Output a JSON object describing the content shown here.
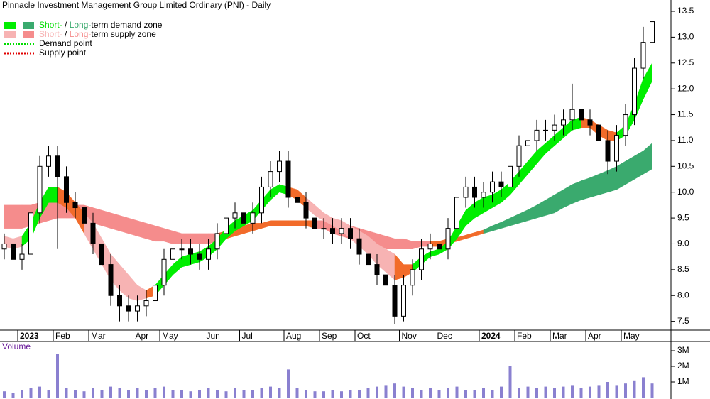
{
  "chart_data": {
    "type": "candlestick",
    "title": "Pinnacle Investment Management Group Limited Ordinary (PNI) - Daily",
    "categories": [
      null,
      null,
      "2023",
      null,
      null,
      null,
      "Feb",
      null,
      null,
      null,
      "Mar",
      null,
      null,
      null,
      null,
      "Apr",
      null,
      null,
      "May",
      null,
      null,
      null,
      null,
      "Jun",
      null,
      null,
      null,
      "Jul",
      null,
      null,
      null,
      null,
      "Aug",
      null,
      null,
      null,
      "Sep",
      null,
      null,
      null,
      "Oct",
      null,
      null,
      null,
      null,
      "Nov",
      null,
      null,
      null,
      "Dec",
      null,
      null,
      null,
      null,
      "2024",
      null,
      null,
      null,
      "Feb",
      null,
      null,
      null,
      "Mar",
      null,
      null,
      null,
      "Apr",
      null,
      null,
      null,
      "May",
      null,
      null,
      null
    ],
    "open": [
      8.9,
      9.0,
      8.7,
      8.8,
      9.6,
      10.5,
      10.7,
      10.3,
      9.8,
      9.7,
      9.4,
      9.0,
      8.6,
      8.0,
      7.8,
      7.7,
      7.8,
      7.9,
      8.2,
      8.7,
      8.9,
      8.9,
      8.8,
      8.7,
      8.9,
      9.2,
      9.5,
      9.6,
      9.4,
      9.6,
      10.1,
      10.4,
      10.6,
      9.9,
      9.8,
      9.5,
      9.3,
      9.3,
      9.2,
      9.3,
      9.1,
      8.8,
      8.6,
      8.4,
      8.2,
      7.6,
      8.2,
      8.5,
      8.9,
      9.0,
      8.9,
      9.3,
      9.9,
      10.1,
      9.9,
      10.0,
      10.2,
      10.1,
      10.5,
      10.9,
      11.0,
      11.2,
      11.2,
      11.3,
      11.4,
      11.6,
      11.4,
      11.3,
      11.0,
      10.6,
      11.1,
      11.5,
      12.4,
      12.9
    ],
    "high": [
      9.2,
      9.2,
      9.0,
      9.8,
      10.7,
      10.9,
      10.9,
      10.5,
      10.0,
      9.9,
      9.6,
      9.2,
      8.8,
      8.2,
      8.0,
      8.0,
      8.1,
      8.4,
      8.9,
      9.1,
      9.1,
      9.1,
      9.0,
      9.1,
      9.4,
      9.7,
      9.8,
      9.8,
      9.8,
      10.3,
      10.6,
      10.8,
      10.8,
      10.1,
      10.0,
      9.7,
      9.5,
      9.5,
      9.5,
      9.5,
      9.3,
      9.0,
      8.8,
      8.6,
      8.4,
      8.4,
      8.7,
      9.1,
      9.2,
      9.2,
      9.5,
      10.1,
      10.3,
      10.3,
      10.2,
      10.4,
      10.4,
      10.7,
      11.1,
      11.2,
      11.4,
      11.4,
      11.5,
      11.6,
      12.1,
      11.8,
      11.6,
      11.5,
      11.2,
      11.3,
      11.7,
      12.6,
      13.2,
      13.4
    ],
    "low": [
      8.7,
      8.5,
      8.5,
      8.6,
      9.4,
      10.3,
      8.9,
      9.6,
      9.5,
      9.2,
      8.8,
      8.4,
      7.8,
      7.5,
      7.5,
      7.5,
      7.6,
      7.7,
      8.0,
      8.5,
      8.7,
      8.6,
      8.5,
      8.5,
      8.7,
      9.0,
      9.3,
      9.2,
      9.2,
      9.4,
      9.9,
      10.2,
      9.7,
      9.6,
      9.3,
      9.1,
      9.1,
      9.0,
      9.0,
      8.9,
      8.6,
      8.4,
      8.2,
      8.0,
      7.45,
      7.5,
      8.0,
      8.3,
      8.7,
      8.6,
      8.7,
      9.1,
      9.7,
      9.7,
      9.7,
      9.8,
      9.9,
      9.9,
      10.3,
      10.7,
      10.8,
      11.0,
      11.0,
      11.1,
      11.2,
      11.2,
      11.1,
      10.8,
      10.35,
      10.4,
      10.9,
      11.3,
      12.2,
      12.8
    ],
    "close": [
      9.0,
      8.7,
      8.8,
      9.6,
      10.5,
      10.7,
      10.3,
      9.8,
      9.7,
      9.4,
      9.0,
      8.6,
      8.0,
      7.8,
      7.7,
      7.8,
      7.9,
      8.2,
      8.7,
      8.9,
      8.9,
      8.8,
      8.7,
      8.9,
      9.2,
      9.5,
      9.6,
      9.4,
      9.6,
      10.1,
      10.4,
      10.6,
      9.9,
      9.8,
      9.5,
      9.3,
      9.3,
      9.2,
      9.3,
      9.1,
      8.8,
      8.6,
      8.4,
      8.2,
      7.6,
      8.2,
      8.5,
      8.9,
      9.0,
      8.9,
      9.3,
      9.9,
      10.1,
      9.9,
      10.0,
      10.2,
      10.1,
      10.5,
      10.9,
      11.0,
      11.2,
      11.2,
      11.3,
      11.4,
      11.6,
      11.4,
      11.3,
      11.0,
      10.6,
      11.1,
      11.5,
      12.4,
      12.9,
      13.3
    ],
    "candle_color": "#000000",
    "up_fill": "#ffffff",
    "ylim": [
      7.33,
      13.72
    ],
    "yticks": [
      7.5,
      {
        "value": 8,
        "label": "8.0"
      },
      8.5,
      {
        "value": 9,
        "label": "9.0"
      },
      9.5,
      {
        "value": 10,
        "label": "10.0"
      },
      10.5,
      {
        "value": 11,
        "label": "11.0"
      },
      11.5,
      {
        "value": 12,
        "label": "12.0"
      },
      12.5,
      {
        "value": 13,
        "label": "13.0"
      },
      13.5
    ],
    "bands": [
      {
        "lower": [
          9.3,
          9.3,
          9.3,
          9.35,
          9.4,
          9.45,
          9.5,
          9.5,
          9.5,
          9.45,
          9.4,
          9.35,
          9.3,
          9.25,
          9.2,
          9.15,
          9.1,
          9.05,
          9.05,
          9.0,
          9.0,
          9.0,
          9.0,
          9.0,
          9.05,
          9.1,
          9.15,
          9.2,
          9.25,
          9.3,
          9.35,
          9.35,
          9.35,
          9.35,
          9.35,
          9.3,
          9.3,
          9.2,
          9.15,
          9.1,
          9.05,
          9.0,
          8.95,
          8.9,
          8.9,
          8.9,
          8.9,
          8.95,
          8.95,
          8.95,
          9.0,
          9.05,
          9.1,
          9.15,
          9.2,
          9.25,
          9.3,
          9.35,
          9.4,
          9.45,
          9.5,
          9.55,
          9.6,
          9.7,
          9.78,
          9.85,
          9.9,
          9.95,
          10.0,
          10.05,
          10.15,
          10.25,
          10.35,
          10.45
        ],
        "upper": [
          9.75,
          9.75,
          9.75,
          9.75,
          9.8,
          9.8,
          9.8,
          9.8,
          9.75,
          9.75,
          9.7,
          9.65,
          9.6,
          9.55,
          9.5,
          9.45,
          9.4,
          9.35,
          9.3,
          9.25,
          9.2,
          9.2,
          9.2,
          9.2,
          9.2,
          9.25,
          9.3,
          9.35,
          9.4,
          9.4,
          9.45,
          9.45,
          9.45,
          9.45,
          9.45,
          9.45,
          9.45,
          9.45,
          9.4,
          9.35,
          9.3,
          9.25,
          9.2,
          9.15,
          9.1,
          9.1,
          9.05,
          9.05,
          9.05,
          9.05,
          9.1,
          9.12,
          9.17,
          9.22,
          9.27,
          9.35,
          9.42,
          9.5,
          9.58,
          9.66,
          9.75,
          9.85,
          9.95,
          10.05,
          10.15,
          10.22,
          10.28,
          10.35,
          10.42,
          10.5,
          10.6,
          10.7,
          10.8,
          10.95
        ],
        "colors": [
          "#f58c8c",
          "#f58c8c",
          "#f58c8c",
          "#f58c8c",
          "#f58c8c",
          "#f58c8c",
          "#f58c8c",
          "#f58c8c",
          "#f58c8c",
          "#f58c8c",
          "#f58c8c",
          "#f58c8c",
          "#f58c8c",
          "#f58c8c",
          "#f58c8c",
          "#f58c8c",
          "#f58c8c",
          "#f58c8c",
          "#f58c8c",
          "#f58c8c",
          "#f58c8c",
          "#f58c8c",
          "#f58c8c",
          "#f58c8c",
          "#f26b2a",
          "#f26b2a",
          "#f26b2a",
          "#f26b2a",
          "#f26b2a",
          "#f26b2a",
          "#f26b2a",
          "#f26b2a",
          "#f26b2a",
          "#f26b2a",
          "#f26b2a",
          "#f58c8c",
          "#f58c8c",
          "#f58c8c",
          "#f58c8c",
          "#f58c8c",
          "#f58c8c",
          "#f58c8c",
          "#f58c8c",
          "#f58c8c",
          "#f58c8c",
          "#f58c8c",
          "#f58c8c",
          "#f58c8c",
          "#f26b2a",
          "#f26b2a",
          "#f26b2a",
          "#f26b2a",
          "#f26b2a",
          "#f26b2a",
          "#3aaa6e",
          "#3aaa6e",
          "#3aaa6e",
          "#3aaa6e",
          "#3aaa6e",
          "#3aaa6e",
          "#3aaa6e",
          "#3aaa6e",
          "#3aaa6e",
          "#3aaa6e",
          "#3aaa6e",
          "#3aaa6e",
          "#3aaa6e",
          "#3aaa6e",
          "#3aaa6e",
          "#3aaa6e",
          "#3aaa6e",
          "#3aaa6e",
          "#3aaa6e",
          "#3aaa6e"
        ]
      },
      {
        "lower": [
          8.95,
          8.9,
          8.95,
          9.1,
          9.5,
          9.8,
          9.8,
          9.7,
          9.5,
          9.2,
          8.9,
          8.6,
          8.3,
          8.1,
          7.95,
          7.9,
          7.95,
          8.0,
          8.2,
          8.4,
          8.55,
          8.6,
          8.65,
          8.75,
          8.9,
          9.1,
          9.25,
          9.35,
          9.45,
          9.65,
          9.85,
          10.0,
          9.95,
          9.85,
          9.7,
          9.55,
          9.45,
          9.35,
          9.25,
          9.1,
          8.95,
          8.8,
          8.6,
          8.45,
          8.3,
          8.35,
          8.45,
          8.6,
          8.75,
          8.8,
          8.9,
          9.1,
          9.35,
          9.5,
          9.6,
          9.7,
          9.8,
          9.95,
          10.15,
          10.35,
          10.55,
          10.75,
          10.9,
          11.05,
          11.2,
          11.25,
          11.25,
          11.1,
          11.0,
          11.0,
          11.1,
          11.4,
          11.8,
          12.15
        ],
        "upper": [
          9.15,
          9.1,
          9.15,
          9.4,
          9.8,
          10.1,
          10.1,
          10.0,
          9.8,
          9.6,
          9.4,
          9.1,
          8.8,
          8.6,
          8.4,
          8.2,
          8.1,
          8.2,
          8.4,
          8.6,
          8.75,
          8.8,
          8.85,
          8.95,
          9.1,
          9.3,
          9.45,
          9.55,
          9.65,
          9.85,
          10.05,
          10.15,
          10.1,
          10.05,
          9.9,
          9.75,
          9.6,
          9.5,
          9.45,
          9.35,
          9.25,
          9.15,
          9.0,
          8.9,
          8.8,
          8.6,
          8.6,
          8.75,
          8.85,
          8.9,
          9.05,
          9.35,
          9.65,
          9.8,
          9.9,
          9.95,
          10.05,
          10.2,
          10.4,
          10.6,
          10.8,
          10.95,
          11.1,
          11.25,
          11.4,
          11.45,
          11.4,
          11.3,
          11.2,
          11.15,
          11.3,
          11.7,
          12.2,
          12.5
        ],
        "colors": [
          "#f7b3b3",
          "#f7b3b3",
          "#00ee00",
          "#00ee00",
          "#00ee00",
          "#00ee00",
          "#f26b2a",
          "#f26b2a",
          "#f26b2a",
          "#f7b3b3",
          "#f7b3b3",
          "#f7b3b3",
          "#f7b3b3",
          "#f7b3b3",
          "#f7b3b3",
          "#f7b3b3",
          "#f26b2a",
          "#00ee00",
          "#00ee00",
          "#00ee00",
          "#00ee00",
          "#00ee00",
          "#00ee00",
          "#00ee00",
          "#00ee00",
          "#00ee00",
          "#00ee00",
          "#00ee00",
          "#00ee00",
          "#00ee00",
          "#00ee00",
          "#00ee00",
          "#f26b2a",
          "#f26b2a",
          "#f7b3b3",
          "#f7b3b3",
          "#f7b3b3",
          "#f7b3b3",
          "#f7b3b3",
          "#f7b3b3",
          "#f7b3b3",
          "#f7b3b3",
          "#f7b3b3",
          "#f7b3b3",
          "#f26b2a",
          "#f26b2a",
          "#00ee00",
          "#00ee00",
          "#00ee00",
          "#00ee00",
          "#00ee00",
          "#00ee00",
          "#00ee00",
          "#00ee00",
          "#00ee00",
          "#00ee00",
          "#00ee00",
          "#00ee00",
          "#00ee00",
          "#00ee00",
          "#00ee00",
          "#00ee00",
          "#00ee00",
          "#00ee00",
          "#00ee00",
          "#f26b2a",
          "#f26b2a",
          "#f26b2a",
          "#f26b2a",
          "#00ee00",
          "#00ee00",
          "#00ee00",
          "#00ee00",
          "#00ee00"
        ]
      }
    ],
    "legend": {
      "items": [
        {
          "swatches": [
            "#00ee00",
            "#3aaa6e"
          ],
          "parts": [
            {
              "text": "Short-",
              "color": "#00dd00"
            },
            {
              "text": " / "
            },
            {
              "text": "Long-",
              "color": "#3aaa6e"
            },
            {
              "text": "term demand zone"
            }
          ]
        },
        {
          "swatches": [
            "#f7b3b3",
            "#f58c8c"
          ],
          "parts": [
            {
              "text": "Short-",
              "color": "#f7b3b3"
            },
            {
              "text": " / "
            },
            {
              "text": "Long-",
              "color": "#f58c8c"
            },
            {
              "text": "term supply zone"
            }
          ]
        },
        {
          "line_color": "#00dd00",
          "parts": [
            {
              "text": "Demand point"
            }
          ]
        },
        {
          "line_color": "#e00000",
          "parts": [
            {
              "text": "Supply point"
            }
          ]
        }
      ]
    },
    "volume": {
      "label": "Volume",
      "color": "#8a80d0",
      "values": [
        400000,
        300000,
        500000,
        600000,
        700000,
        500000,
        2800000,
        600000,
        500000,
        400000,
        600000,
        500000,
        700000,
        600000,
        500000,
        600000,
        500000,
        600000,
        700000,
        500000,
        500000,
        400000,
        500000,
        600000,
        500000,
        400000,
        600000,
        500000,
        500000,
        600000,
        700000,
        600000,
        1800000,
        600000,
        500000,
        400000,
        400000,
        500000,
        400000,
        500000,
        500000,
        600000,
        700000,
        800000,
        900000,
        700000,
        600000,
        500000,
        600000,
        500000,
        600000,
        700000,
        500000,
        500000,
        600000,
        500000,
        700000,
        2000000,
        600000,
        700000,
        600000,
        700000,
        600000,
        700000,
        800000,
        600000,
        700000,
        800000,
        1000000,
        800000,
        900000,
        1100000,
        1300000,
        900000
      ],
      "ylim": [
        0,
        3500000
      ],
      "yticks": [
        {
          "value": 1000000,
          "label": "1M"
        },
        {
          "value": 2000000,
          "label": "2M"
        },
        {
          "value": 3000000,
          "label": "3M"
        }
      ]
    }
  }
}
